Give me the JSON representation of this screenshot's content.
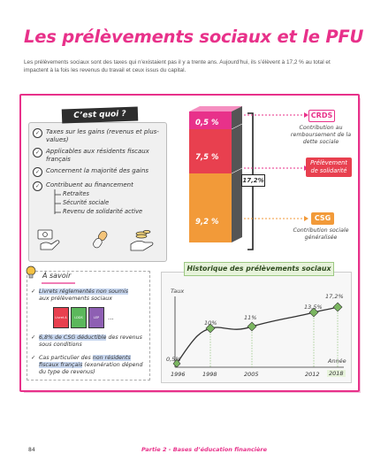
{
  "title": "Les prélèvements sociaux et le PFU",
  "intro": "Les prélèvements sociaux sont des taxes qui n’existaient pas il y a trente ans. Aujourd’hui, ils s’élèvent à 17,2 % au total et impactent à la fois les revenus du travail et ceux issus du capital.",
  "quoi": {
    "tag": "C’est quoi ?",
    "items": [
      "Taxes sur les gains (revenus et plus-values)",
      "Applicables aux résidents fiscaux français",
      "Concernent la majorité des gains",
      "Contribuent au financement"
    ],
    "sub_items": [
      "Retraites",
      "Sécurité sociale",
      "Revenu de solidarité active"
    ]
  },
  "bars": [
    {
      "label": "0,5 %",
      "color": "#e8318a"
    },
    {
      "label": "7,5 %",
      "color": "#e8404f"
    },
    {
      "label": "9,2 %",
      "color": "#f29a39"
    }
  ],
  "total_label": "17,2%",
  "right": {
    "crds_tag": "CRDS",
    "crds_desc": "Contribution au remboursement de la dette sociale",
    "solidarite_tag": "Prélèvement de solidarité",
    "csg_tag": "CSG",
    "csg_desc": "Contribution sociale généralisée"
  },
  "savoir": {
    "title": "À savoir",
    "item1_hl": "Livrets réglementés non soumis",
    "item1_rest": "aux prélèvements sociaux",
    "book_labels": [
      "Livret A",
      "LDDS",
      "LEP"
    ],
    "item2_hl": "6,8% de CSG déductible",
    "item2_rest": "des revenus sous conditions",
    "item3_a": "Cas particulier des",
    "item3_hl1": "non résidents",
    "item3_hl2": "fiscaux français",
    "item3_rest": "(exonération dépend du type de revenus)"
  },
  "historique": {
    "tag": "Historique des prélèvements sociaux",
    "y_label": "Taux",
    "x_label": "Année",
    "years": [
      "1996",
      "1998",
      "2005",
      "2012",
      "2018"
    ],
    "values": [
      "0,5%",
      "10%",
      "11%",
      "13,5%",
      "17,2%"
    ],
    "accent": "#7bb661"
  },
  "footer": {
    "page": "84",
    "text": "Partie 2 - Bases d’éducation financière"
  },
  "colors": {
    "accent": "#e8318a",
    "orange": "#f29a39",
    "red": "#e8404f",
    "green": "#7bb661"
  }
}
